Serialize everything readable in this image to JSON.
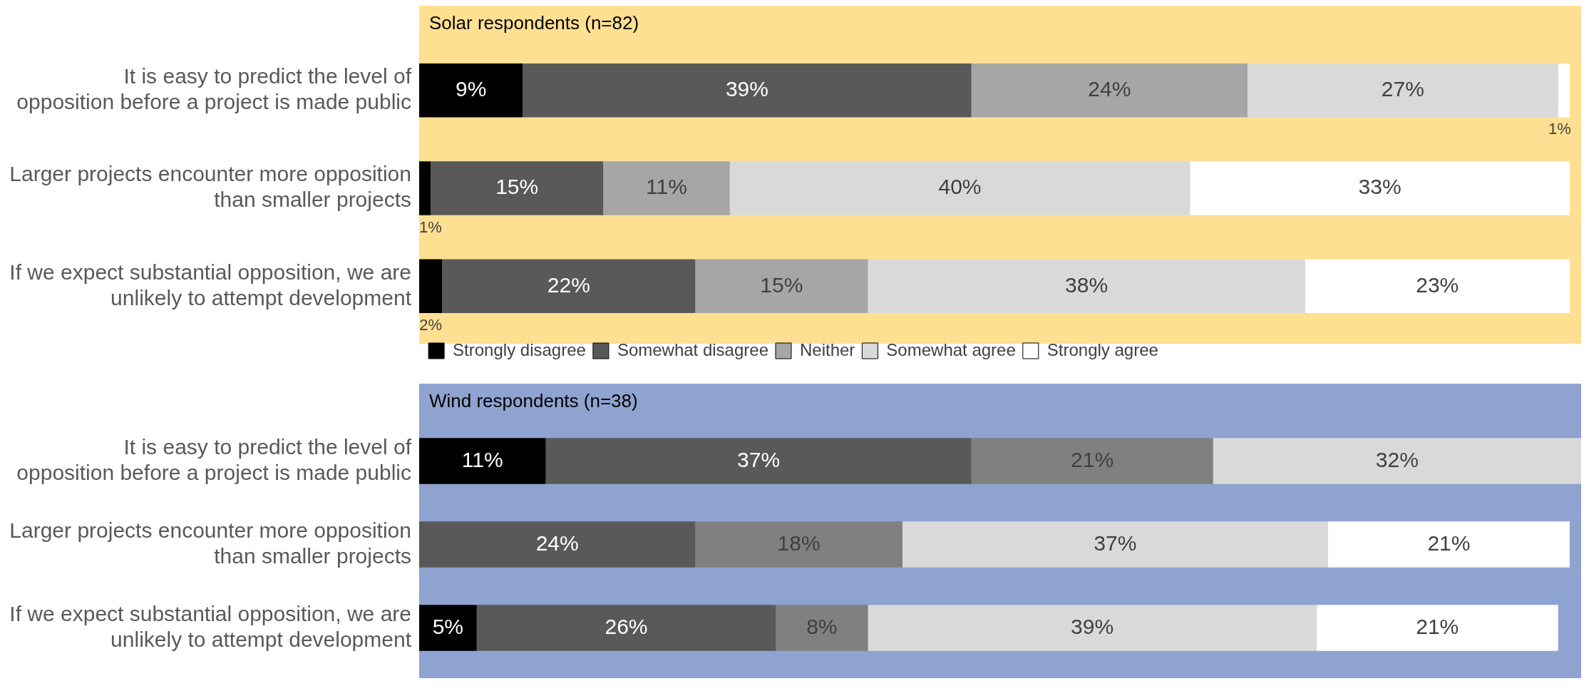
{
  "chart_data": [
    {
      "type": "bar",
      "orientation": "horizontal",
      "stacked": true,
      "title": "Solar respondents (n=82)",
      "categories": [
        "It is easy to predict the level of opposition before a project is made public",
        "Larger projects encounter more opposition than smaller projects",
        "If we expect substantial opposition, we are unlikely to attempt development"
      ],
      "xlim": [
        0,
        101
      ],
      "tick_labels": "y",
      "grid": false,
      "legend": "bottom",
      "series": [
        {
          "name": "Strongly disagree",
          "color": "#000000",
          "values": [
            9,
            1,
            2
          ],
          "value_labels": [
            "9%",
            "1%",
            "2%"
          ]
        },
        {
          "name": "Somewhat disagree",
          "color": "#595959",
          "values": [
            39,
            15,
            22
          ],
          "value_labels": [
            "39%",
            "15%",
            "22%"
          ]
        },
        {
          "name": "Neither",
          "color": "#a6a6a6",
          "values": [
            24,
            11,
            15
          ],
          "value_labels": [
            "24%",
            "11%",
            "15%"
          ]
        },
        {
          "name": "Somewhat agree",
          "color": "#d9d9d9",
          "values": [
            27,
            40,
            38
          ],
          "value_labels": [
            "27%",
            "40%",
            "38%"
          ]
        },
        {
          "name": "Strongly agree",
          "color": "#ffffff",
          "values": [
            1,
            33,
            23
          ],
          "value_labels": [
            "1%",
            "33%",
            "23%"
          ]
        }
      ]
    },
    {
      "type": "bar",
      "orientation": "horizontal",
      "stacked": true,
      "title": "Wind respondents (n=38)",
      "categories": [
        "It is easy to predict the level of opposition before a project is made public",
        "Larger projects encounter more opposition than smaller projects",
        "If we expect substantial opposition, we are unlikely to attempt development"
      ],
      "xlim": [
        0,
        101
      ],
      "tick_labels": "y",
      "grid": false,
      "legend": false,
      "series": [
        {
          "color": "#000000",
          "values": [
            11,
            null,
            5
          ],
          "value_labels": [
            "11%",
            null,
            "5%"
          ]
        },
        {
          "color": "#595959",
          "values": [
            37,
            24,
            26
          ],
          "value_labels": [
            "37%",
            "24%",
            "26%"
          ]
        },
        {
          "color": "#808080",
          "values": [
            21,
            18,
            8
          ],
          "value_labels": [
            "21%",
            "18%",
            "8%"
          ]
        },
        {
          "color": "#d9d9d9",
          "values": [
            32,
            37,
            39
          ],
          "value_labels": [
            "32%",
            "37%",
            "39%"
          ]
        },
        {
          "color": "#ffffff",
          "values": [
            null,
            21,
            21
          ],
          "value_labels": [
            null,
            "21%",
            "21%"
          ]
        }
      ]
    }
  ]
}
